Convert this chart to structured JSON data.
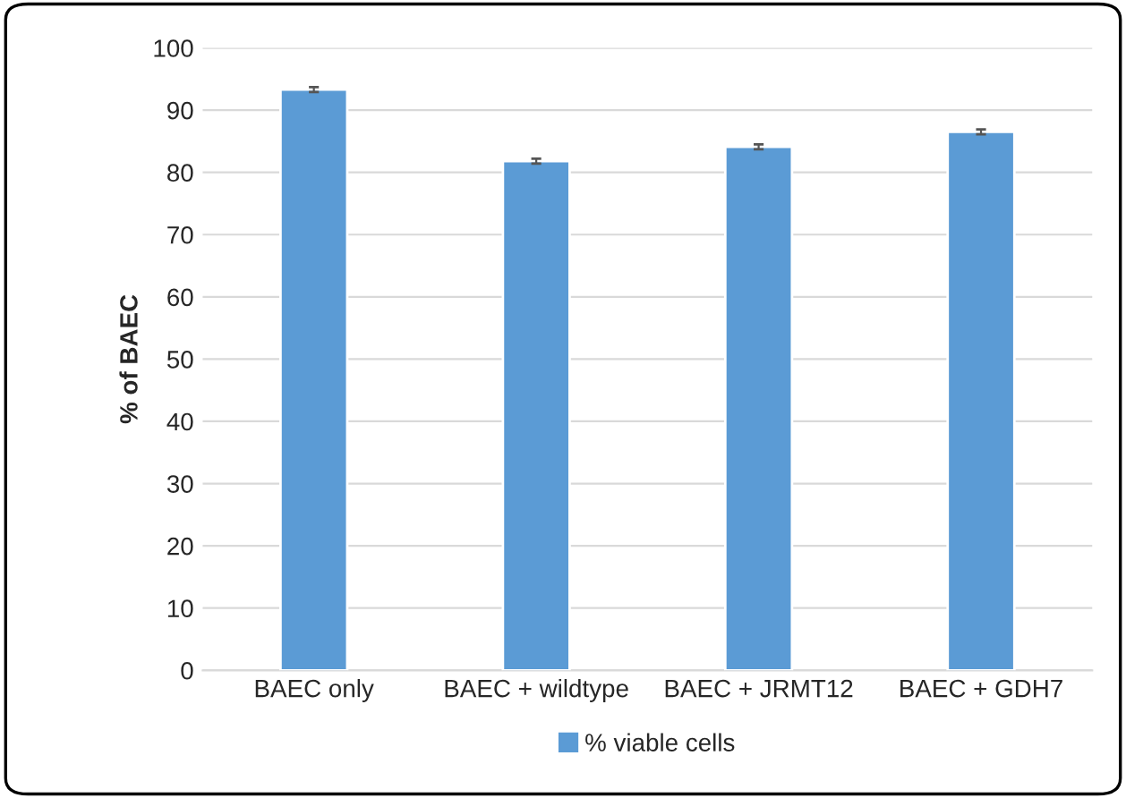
{
  "chart_data": {
    "type": "bar",
    "ylabel": "% of BAEC",
    "categories": [
      "BAEC only",
      "BAEC + wildtype",
      "BAEC + JRMT12",
      "BAEC + GDH7"
    ],
    "series": [
      {
        "name": "% viable cells",
        "color": "#5b9bd5",
        "values": [
          93.3,
          81.8,
          84.1,
          86.5
        ],
        "errors": [
          0.4,
          0.4,
          0.4,
          0.4
        ]
      }
    ],
    "ylim": [
      0,
      100
    ],
    "yticks": [
      0,
      10,
      20,
      30,
      40,
      50,
      60,
      70,
      80,
      90,
      100
    ],
    "grid": "y",
    "legend": "bottom"
  }
}
